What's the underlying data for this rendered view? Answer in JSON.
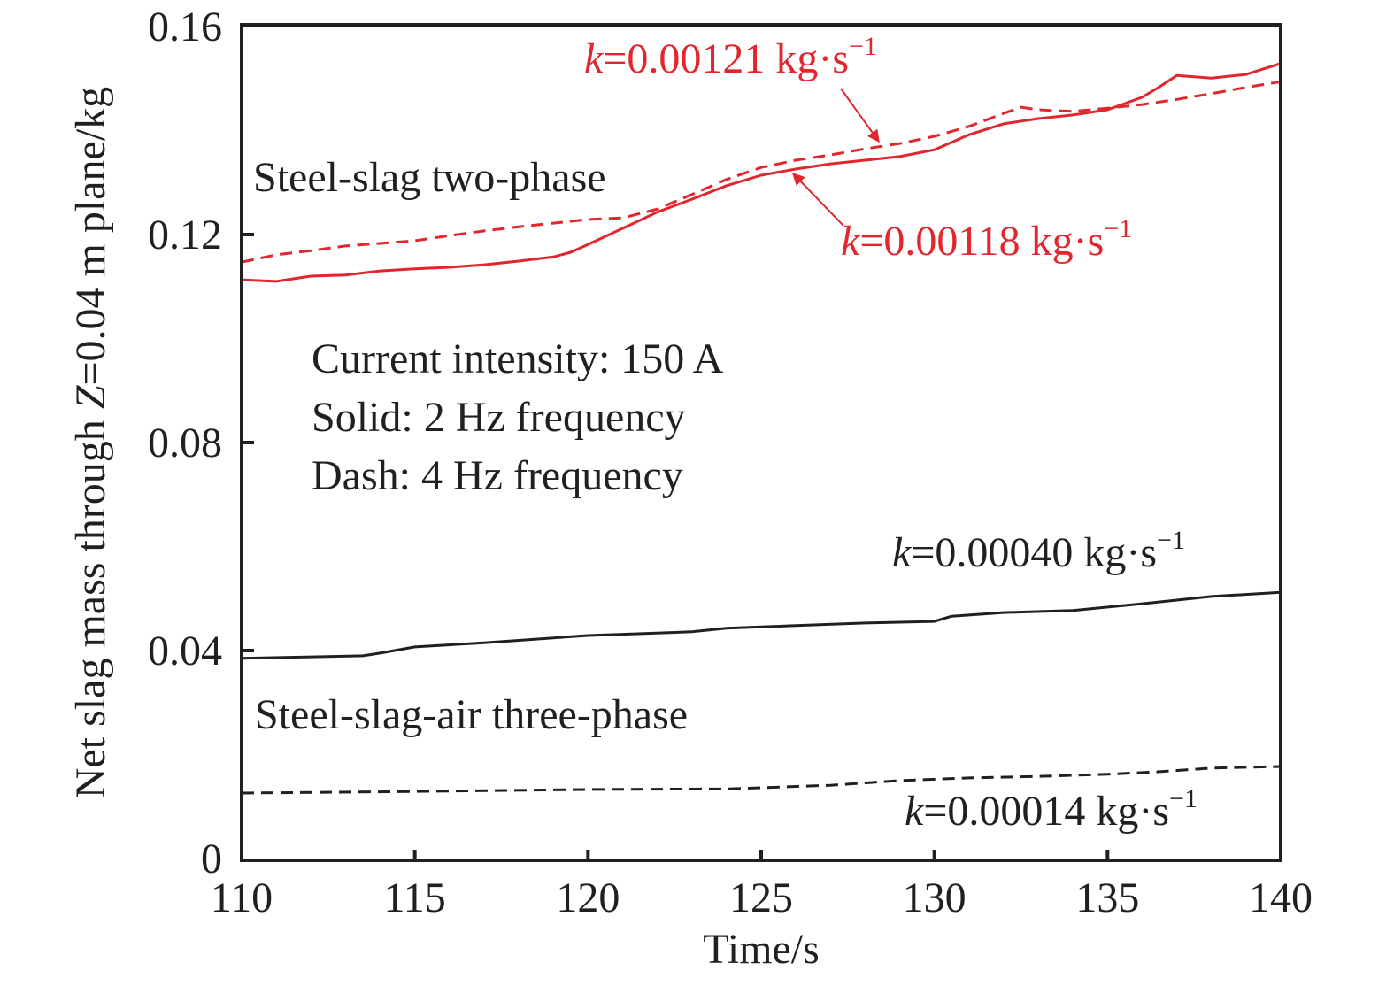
{
  "chart_data": {
    "type": "line",
    "title": "",
    "xlabel": "Time/s",
    "ylabel_parts": [
      "Net slag mass through ",
      "Z",
      "=0.04 m plane/kg"
    ],
    "ylabel": "Net slag mass through Z=0.04 m plane/kg",
    "xlim": [
      110,
      140
    ],
    "ylim": [
      0,
      0.16
    ],
    "xticks": [
      110,
      115,
      120,
      125,
      130,
      135,
      140
    ],
    "xtick_labels": [
      "110",
      "115",
      "120",
      "125",
      "130",
      "135",
      "140"
    ],
    "yticks": [
      0,
      0.04,
      0.08,
      0.12,
      0.16
    ],
    "ytick_labels": [
      "0",
      "0.04",
      "0.08",
      "0.12",
      "0.16"
    ],
    "grid": false,
    "legend": "none",
    "colors": {
      "red": "#e1272d",
      "black": "#231f20"
    },
    "series": [
      {
        "name": "Steel-slag two-phase, 2 Hz (solid)",
        "color": "#e1272d",
        "style": "solid",
        "x": [
          110,
          111,
          112,
          113,
          114,
          115,
          116,
          117,
          118,
          119,
          119.5,
          120,
          121,
          122,
          123,
          124,
          125,
          126,
          127,
          128,
          129,
          130,
          131,
          132,
          133,
          134,
          135,
          136,
          136.5,
          137,
          138,
          139,
          140
        ],
        "y": [
          0.1113,
          0.111,
          0.112,
          0.1122,
          0.113,
          0.1134,
          0.1137,
          0.1142,
          0.1149,
          0.1157,
          0.1166,
          0.1181,
          0.1212,
          0.1243,
          0.1268,
          0.1294,
          0.1314,
          0.1326,
          0.1336,
          0.1343,
          0.135,
          0.1363,
          0.1392,
          0.1413,
          0.1423,
          0.143,
          0.144,
          0.1464,
          0.1484,
          0.1506,
          0.1501,
          0.1508,
          0.1529
        ]
      },
      {
        "name": "Steel-slag two-phase, 4 Hz (dash)",
        "color": "#e1272d",
        "style": "dash",
        "x": [
          110,
          111,
          112,
          113,
          114,
          115,
          116,
          117,
          118,
          119,
          120,
          121,
          122,
          123,
          124,
          125,
          126,
          127,
          128,
          129,
          130,
          131,
          132,
          132.5,
          133,
          134,
          135,
          136,
          137,
          138,
          139,
          140
        ],
        "y": [
          0.1147,
          0.1161,
          0.1169,
          0.1178,
          0.1183,
          0.1188,
          0.1198,
          0.1207,
          0.1215,
          0.1222,
          0.1229,
          0.1232,
          0.1249,
          0.1277,
          0.1306,
          0.1329,
          0.1343,
          0.1353,
          0.1365,
          0.1375,
          0.1389,
          0.1408,
          0.1433,
          0.1445,
          0.144,
          0.1437,
          0.1443,
          0.145,
          0.146,
          0.1471,
          0.1483,
          0.1494
        ]
      },
      {
        "name": "Steel-slag-air three-phase, 2 Hz (solid)",
        "color": "#231f20",
        "style": "solid",
        "x": [
          110,
          113.5,
          114,
          115,
          117,
          120,
          123,
          124,
          126,
          128,
          130,
          130.5,
          132,
          134,
          136,
          138,
          140
        ],
        "y": [
          0.0385,
          0.039,
          0.0395,
          0.0407,
          0.0415,
          0.0429,
          0.0436,
          0.0443,
          0.0448,
          0.0453,
          0.0456,
          0.0466,
          0.0473,
          0.0477,
          0.049,
          0.0504,
          0.0512
        ]
      },
      {
        "name": "Steel-slag-air three-phase, 4 Hz (dash)",
        "color": "#231f20",
        "style": "dash",
        "x": [
          110,
          115,
          120,
          124,
          127,
          129,
          131,
          133,
          135,
          136.5,
          138,
          140
        ],
        "y": [
          0.0126,
          0.0129,
          0.0133,
          0.0134,
          0.0141,
          0.015,
          0.0155,
          0.0158,
          0.0162,
          0.0167,
          0.0174,
          0.0177
        ]
      }
    ],
    "annotations": {
      "two_phase_label": "Steel-slag two-phase",
      "three_phase_label": "Steel-slag-air three-phase",
      "conditions": [
        "Current intensity: 150 A",
        "Solid: 2 Hz frequency",
        "Dash: 4 Hz frequency"
      ],
      "k_labels": [
        {
          "var": "k",
          "text": "=0.00121 kg·s",
          "sup": "−1",
          "color": "#e1272d",
          "arrow_to": [
            128.7,
            0.1367
          ]
        },
        {
          "var": "k",
          "text": "=0.00118 kg·s",
          "sup": "−1",
          "color": "#e1272d",
          "arrow_to": [
            125.9,
            0.1329
          ]
        },
        {
          "var": "k",
          "text": "=0.00040 kg·s",
          "sup": "−1",
          "color": "#231f20"
        },
        {
          "var": "k",
          "text": "=0.00014 kg·s",
          "sup": "−1",
          "color": "#231f20"
        }
      ]
    }
  }
}
